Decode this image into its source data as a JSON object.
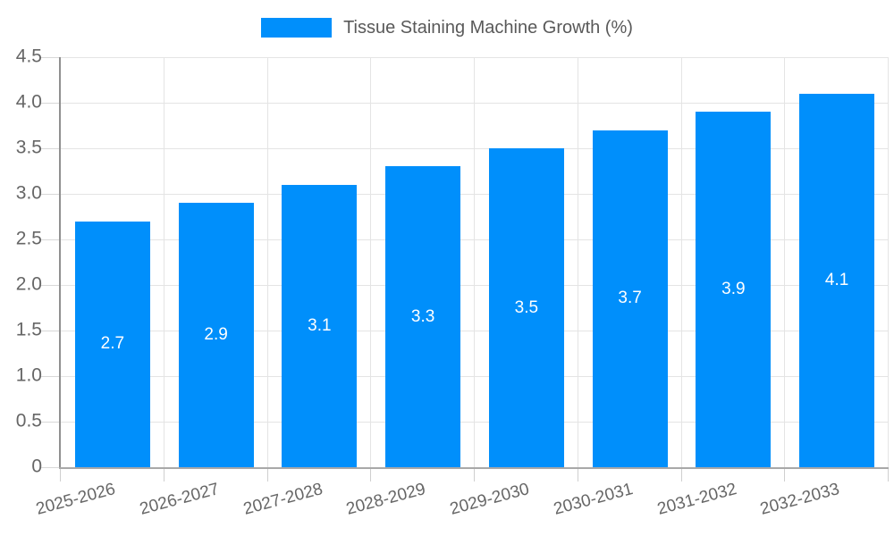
{
  "legend": {
    "label": "Tissue Staining Machine Growth (%)",
    "swatch_color": "#008ffb"
  },
  "chart_data": {
    "type": "bar",
    "title": "",
    "xlabel": "",
    "ylabel": "",
    "categories": [
      "2025-2026",
      "2026-2027",
      "2027-2028",
      "2028-2029",
      "2029-2030",
      "2030-2031",
      "2031-2032",
      "2032-2033"
    ],
    "series": [
      {
        "name": "Tissue Staining Machine Growth (%)",
        "values": [
          2.7,
          2.9,
          3.1,
          3.3,
          3.5,
          3.7,
          3.9,
          4.1
        ]
      }
    ],
    "value_labels": [
      "2.7",
      "2.9",
      "3.1",
      "3.3",
      "3.5",
      "3.7",
      "3.9",
      "4.1"
    ],
    "ylim": [
      0,
      4.5
    ],
    "ytick_labels": [
      "0",
      "0.5",
      "1.0",
      "1.5",
      "2.0",
      "2.5",
      "3.0",
      "3.5",
      "4.0",
      "4.5"
    ],
    "grid": true,
    "legend_position": "top",
    "colors": {
      "bar": "#008ffb",
      "value_label": "#ffffff",
      "gridline": "#e4e4e4",
      "axis_label": "#666666",
      "legend_text": "#595959"
    }
  }
}
